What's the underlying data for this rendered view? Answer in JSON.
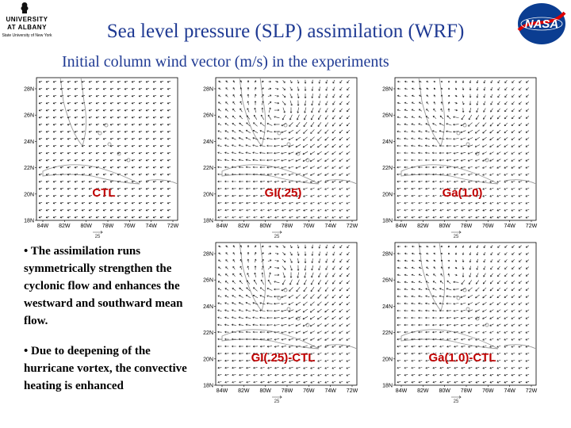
{
  "header": {
    "title": "Sea level pressure (SLP) assimilation (WRF)",
    "subtitle": "Initial column wind vector (m/s) in the experiments"
  },
  "logos": {
    "left": {
      "line1": "UNIVERSITY",
      "line2": "AT ALBANY",
      "line3": "State University of New York"
    },
    "right": {
      "text": "NASA"
    }
  },
  "bullets": [
    "• The assimilation runs symmetrically strengthen the cyclonic flow and enhances the westward and southward mean flow.",
    "• Due to deepening of the hurricane vortex,  the convective heating is enhanced"
  ],
  "axes": {
    "lat_ticks": [
      "28N",
      "26N",
      "24N",
      "22N",
      "20N",
      "18N"
    ],
    "lon_ticks": [
      "84W",
      "82W",
      "80W",
      "78W",
      "76W",
      "74W",
      "72W"
    ],
    "vector_ref": "25"
  },
  "panels": [
    {
      "label": "CTL",
      "vortex": 0
    },
    {
      "label": "GI(.25)",
      "vortex": 1
    },
    {
      "label": "Ga(1.0)",
      "vortex": 0.6
    },
    {
      "label": "GI(.25)-CTL",
      "vortex": 1
    },
    {
      "label": "Ga(1.0)-CTL",
      "vortex": 0.5
    }
  ],
  "colors": {
    "title": "#1f3a93",
    "panel_label": "#c00000"
  }
}
